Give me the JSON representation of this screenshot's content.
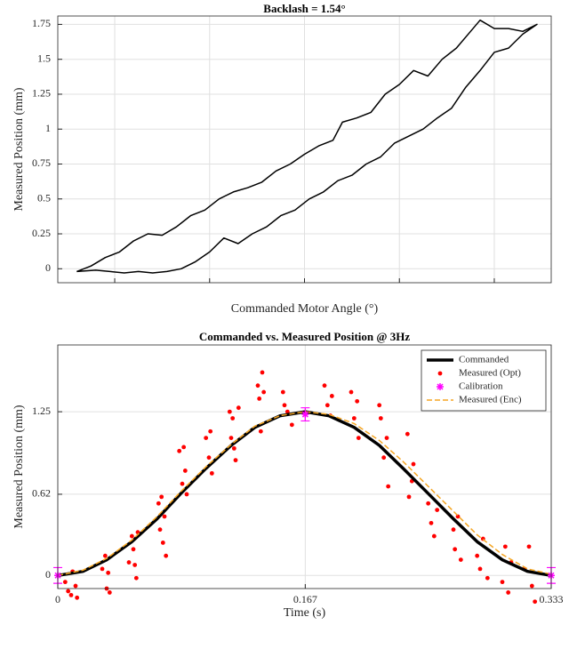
{
  "chart_data": [
    {
      "type": "line",
      "title": "Backlash = 1.54°",
      "xlabel": "Commanded Motor Angle (°)",
      "ylabel": "Measured Position (mm)",
      "color": "#000000",
      "grid": true,
      "xtick_labels": false,
      "xlim": [
        0,
        5.2
      ],
      "xticks": [
        0.6,
        1.6,
        2.6,
        3.6,
        4.6
      ],
      "ylim": [
        -0.1,
        1.81
      ],
      "yticks": [
        0,
        0.25,
        0.5,
        0.75,
        1,
        1.25,
        1.5,
        1.75
      ],
      "x": [
        0.2,
        0.35,
        0.5,
        0.65,
        0.8,
        0.95,
        1.1,
        1.25,
        1.4,
        1.55,
        1.7,
        1.85,
        2.0,
        2.15,
        2.3,
        2.45,
        2.6,
        2.75,
        2.9,
        3.0,
        3.15,
        3.3,
        3.45,
        3.6,
        3.75,
        3.9,
        4.05,
        4.2,
        4.35,
        4.45,
        4.6,
        4.75,
        4.9,
        5.05,
        4.9,
        4.75,
        4.6,
        4.45,
        4.3,
        4.15,
        4.0,
        3.85,
        3.7,
        3.55,
        3.4,
        3.25,
        3.1,
        2.95,
        2.8,
        2.65,
        2.5,
        2.35,
        2.2,
        2.05,
        1.9,
        1.75,
        1.6,
        1.45,
        1.3,
        1.15,
        1.0,
        0.85,
        0.7,
        0.55,
        0.4,
        0.2
      ],
      "values": [
        -0.02,
        0.02,
        0.08,
        0.12,
        0.2,
        0.25,
        0.24,
        0.3,
        0.38,
        0.42,
        0.5,
        0.55,
        0.58,
        0.62,
        0.7,
        0.75,
        0.82,
        0.88,
        0.92,
        1.05,
        1.08,
        1.12,
        1.25,
        1.32,
        1.42,
        1.38,
        1.5,
        1.58,
        1.7,
        1.78,
        1.72,
        1.72,
        1.7,
        1.75,
        1.68,
        1.58,
        1.55,
        1.42,
        1.3,
        1.15,
        1.08,
        1.0,
        0.95,
        0.9,
        0.8,
        0.75,
        0.67,
        0.63,
        0.55,
        0.5,
        0.42,
        0.38,
        0.3,
        0.25,
        0.18,
        0.22,
        0.12,
        0.05,
        0.0,
        -0.02,
        -0.03,
        -0.02,
        -0.03,
        -0.02,
        -0.01,
        -0.02
      ]
    },
    {
      "type": "line",
      "title": "Commanded vs. Measured Position @ 3Hz",
      "xlabel": "Time (s)",
      "ylabel": "Measured Position (mm)",
      "grid": true,
      "legend": "northeast",
      "xlim": [
        0,
        0.333
      ],
      "xticks": [
        0,
        0.167,
        0.333
      ],
      "ylim": [
        -0.1,
        1.76
      ],
      "yticks": [
        0,
        0.62,
        1.25
      ],
      "x": [
        0,
        0.017,
        0.033,
        0.05,
        0.067,
        0.083,
        0.1,
        0.117,
        0.133,
        0.15,
        0.167,
        0.183,
        0.2,
        0.217,
        0.233,
        0.25,
        0.267,
        0.283,
        0.3,
        0.317,
        0.333
      ],
      "series": [
        {
          "name": "Commanded",
          "kind": "line",
          "color": "#000000",
          "width": 3.5,
          "values": [
            0,
            0.031,
            0.119,
            0.258,
            0.432,
            0.625,
            0.818,
            0.993,
            1.131,
            1.219,
            1.25,
            1.219,
            1.131,
            0.993,
            0.818,
            0.625,
            0.432,
            0.258,
            0.119,
            0.031,
            0
          ]
        },
        {
          "name": "Measured (Opt)",
          "kind": "scatter",
          "color": "#ff0000",
          "x": [
            0.005,
            0.007,
            0.009,
            0.01,
            0.012,
            0.013,
            0.03,
            0.032,
            0.033,
            0.034,
            0.035,
            0.048,
            0.05,
            0.051,
            0.052,
            0.053,
            0.054,
            0.068,
            0.069,
            0.07,
            0.071,
            0.072,
            0.073,
            0.082,
            0.084,
            0.085,
            0.086,
            0.087,
            0.1,
            0.102,
            0.103,
            0.104,
            0.116,
            0.117,
            0.118,
            0.119,
            0.12,
            0.122,
            0.135,
            0.136,
            0.137,
            0.138,
            0.139,
            0.152,
            0.153,
            0.155,
            0.158,
            0.18,
            0.182,
            0.184,
            0.185,
            0.198,
            0.2,
            0.202,
            0.203,
            0.217,
            0.218,
            0.22,
            0.222,
            0.223,
            0.236,
            0.237,
            0.239,
            0.24,
            0.25,
            0.252,
            0.254,
            0.256,
            0.267,
            0.268,
            0.27,
            0.272,
            0.283,
            0.285,
            0.287,
            0.29,
            0.3,
            0.302,
            0.304,
            0.306,
            0.315,
            0.318,
            0.32,
            0.322
          ],
          "values": [
            -0.05,
            -0.12,
            -0.15,
            0.03,
            -0.08,
            -0.17,
            0.05,
            0.15,
            -0.1,
            0.02,
            -0.13,
            0.1,
            0.3,
            0.2,
            0.08,
            -0.02,
            0.33,
            0.55,
            0.35,
            0.6,
            0.25,
            0.45,
            0.15,
            0.95,
            0.7,
            0.98,
            0.8,
            0.62,
            1.05,
            0.9,
            1.1,
            0.78,
            1.25,
            1.05,
            1.2,
            0.97,
            0.88,
            1.28,
            1.45,
            1.35,
            1.1,
            1.55,
            1.4,
            1.4,
            1.3,
            1.25,
            1.15,
            1.45,
            1.3,
            1.22,
            1.37,
            1.4,
            1.2,
            1.33,
            1.05,
            1.3,
            1.2,
            0.9,
            1.05,
            0.68,
            1.08,
            0.6,
            0.72,
            0.85,
            0.55,
            0.4,
            0.3,
            0.5,
            0.35,
            0.2,
            0.45,
            0.12,
            0.15,
            0.05,
            0.28,
            -0.02,
            -0.05,
            0.22,
            -0.13,
            0.1,
            0.05,
            0.22,
            -0.08,
            -0.2
          ]
        },
        {
          "name": "Calibration",
          "kind": "errorbar",
          "color": "#ff00ff",
          "x": [
            0,
            0.167,
            0.333
          ],
          "values": [
            0,
            1.23,
            0
          ],
          "errors": [
            0.06,
            0.05,
            0.06
          ]
        },
        {
          "name": "Measured (Enc)",
          "kind": "line",
          "color": "#f5a623",
          "width": 1.5,
          "dash": true,
          "values": [
            0,
            0.04,
            0.13,
            0.27,
            0.45,
            0.64,
            0.83,
            1.0,
            1.14,
            1.22,
            1.25,
            1.23,
            1.16,
            1.03,
            0.87,
            0.68,
            0.49,
            0.31,
            0.16,
            0.05,
            0.01
          ]
        }
      ]
    }
  ]
}
